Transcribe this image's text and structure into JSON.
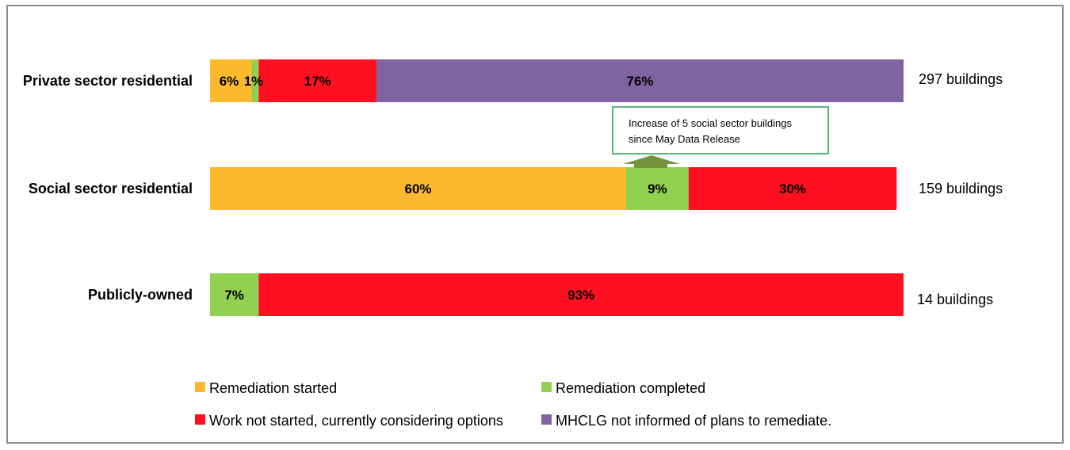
{
  "chart_data": {
    "type": "bar",
    "orientation": "horizontal",
    "stacked": true,
    "percent_scale": [
      0,
      100
    ],
    "categories": [
      "Private sector residential",
      "Social sector residential",
      "Publicly-owned"
    ],
    "series": [
      {
        "name": "Remediation started",
        "color": "#FBBA2E",
        "values": [
          6,
          60,
          0
        ]
      },
      {
        "name": "Remediation completed",
        "color": "#92D050",
        "values": [
          1,
          9,
          7
        ]
      },
      {
        "name": "Work not started, currently considering options",
        "color": "#FF1020",
        "values": [
          17,
          30,
          93
        ]
      },
      {
        "name": "MHCLG not informed of plans to remediate.",
        "color": "#8064A2",
        "values": [
          76,
          0,
          0
        ]
      }
    ],
    "data_labels": [
      [
        "6%",
        "1%",
        "17%",
        "76%"
      ],
      [
        "60%",
        "9%",
        "30%",
        ""
      ],
      [
        "",
        "7%",
        "93%",
        ""
      ]
    ],
    "totals": [
      "297 buildings",
      "159 buildings",
      "14 buildings"
    ],
    "legend_position": "bottom",
    "grid": false,
    "annotation": {
      "lines": [
        "Increase of 5 social sector buildings",
        "since May Data Release"
      ],
      "border_color": "#1E9E4A",
      "arrow_color": "#76923C"
    }
  }
}
